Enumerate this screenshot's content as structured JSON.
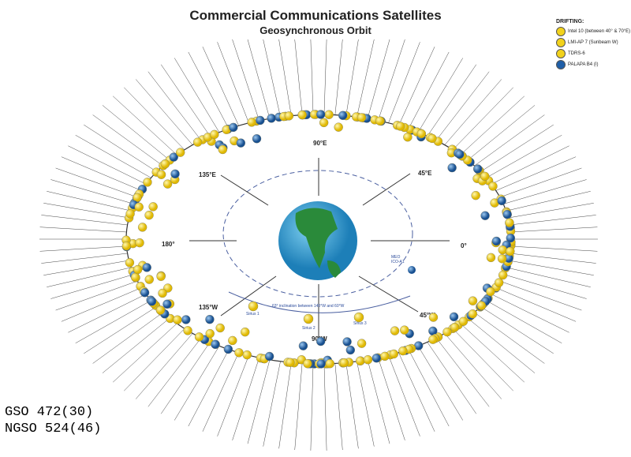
{
  "title": "Commercial Communications Satellites",
  "subtitle": "Geosynchronous Orbit",
  "legend": {
    "heading": "DRIFTING:",
    "items": [
      {
        "label": "Intel 10 (between 40° & 70°E)",
        "color": "#f2d21b"
      },
      {
        "label": "LMI-AP 7 (Sunbeam W)",
        "color": "#f2d21b"
      },
      {
        "label": "TDRS-6",
        "color": "#f2d21b"
      },
      {
        "label": "PALAPA B4 (I)",
        "color": "#1f5fa8"
      }
    ]
  },
  "longitudes": {
    "n": "90°E",
    "ne": "45°E",
    "e": "0°",
    "se": "45°W",
    "s": "90°W",
    "sw": "135°W",
    "w": "180°",
    "nw": "135°E"
  },
  "sirius": {
    "note": "63° inclination between 140°W and 60°W",
    "s1": "Sirius 1",
    "s2": "Sirius 2",
    "s3": "Sirius 3"
  },
  "meo": {
    "line1": "MEO",
    "line2": "ICO-A1"
  },
  "counts": {
    "gso": "GSO 472(30)",
    "ngso": "NGSO 524(46)"
  },
  "colors": {
    "gold": "#f2d21b",
    "blue": "#1f5fa8",
    "orbit": "#333",
    "inner": "#4a5fa0"
  }
}
